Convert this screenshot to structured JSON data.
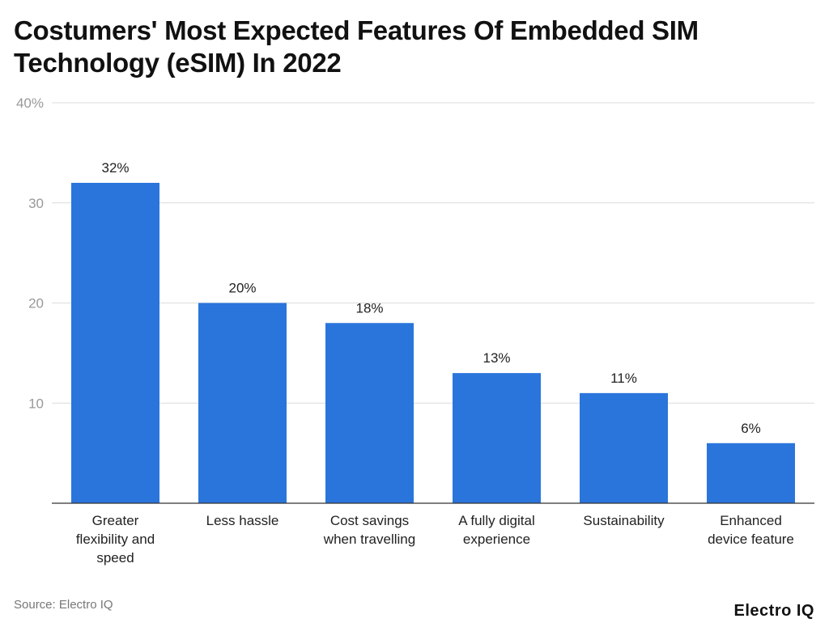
{
  "chart_data": {
    "type": "bar",
    "title": "Costumers' Most Expected Features Of Embedded SIM Technology (eSIM) In 2022",
    "categories": [
      "Greater flexibility and speed",
      "Less hassle",
      "Cost savings when travelling",
      "A fully digital experience",
      "Sustainability",
      "Enhanced device feature"
    ],
    "category_lines": [
      [
        "Greater",
        "flexibility and",
        "speed"
      ],
      [
        "Less hassle"
      ],
      [
        "Cost savings",
        "when travelling"
      ],
      [
        "A fully digital",
        "experience"
      ],
      [
        "Sustainability"
      ],
      [
        "Enhanced",
        "device feature"
      ]
    ],
    "values": [
      32,
      20,
      18,
      13,
      11,
      6
    ],
    "data_labels": [
      "32%",
      "20%",
      "18%",
      "13%",
      "11%",
      "6%"
    ],
    "yticks": [
      10,
      20,
      30,
      40
    ],
    "ytick_labels": [
      "10",
      "20",
      "30",
      "40%"
    ],
    "ylim": [
      0,
      40
    ],
    "xlabel": "",
    "ylabel": "",
    "grid": true,
    "bar_color": "#2a75dc"
  },
  "source": "Source: Electro IQ",
  "logo": "Electro IQ"
}
